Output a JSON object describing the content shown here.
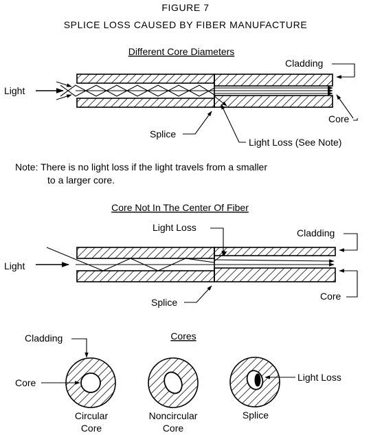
{
  "figure_number": "FIGURE 7",
  "title": "SPLICE LOSS CAUSED BY FIBER MANUFACTURE",
  "section1": {
    "heading": "Different Core Diameters",
    "light": "Light",
    "cladding": "Cladding",
    "core": "Core",
    "splice": "Splice",
    "light_loss": "Light Loss (See Note)"
  },
  "note": {
    "line1": "Note:  There is no light loss if the light travels from a smaller",
    "line2": "to a larger core."
  },
  "section2": {
    "heading": "Core Not In The Center Of Fiber",
    "light_loss": "Light Loss",
    "cladding": "Cladding",
    "light": "Light",
    "splice": "Splice",
    "core": "Core"
  },
  "section3": {
    "heading": "Cores",
    "cladding": "Cladding",
    "core": "Core",
    "light_loss": "Light Loss",
    "captions": {
      "circular_1": "Circular",
      "circular_2": "Core",
      "noncircular_1": "Noncircular",
      "noncircular_2": "Core",
      "splice": "Splice"
    }
  }
}
